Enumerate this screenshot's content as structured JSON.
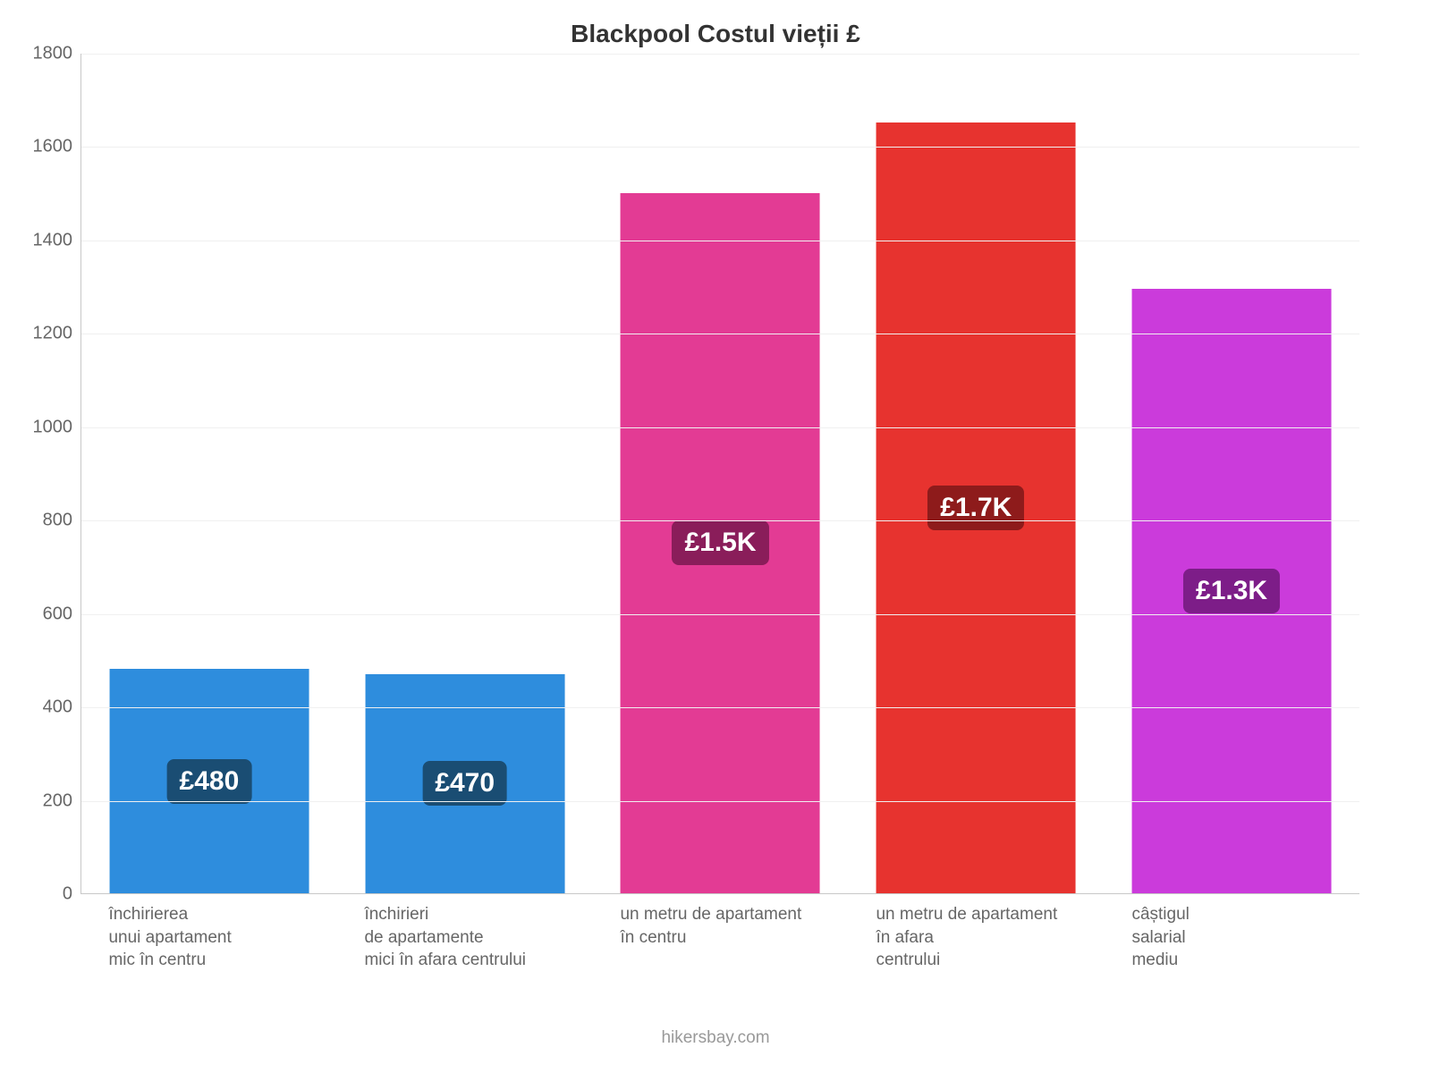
{
  "chart": {
    "type": "bar",
    "title": "Blackpool Costul vieții £",
    "title_fontsize": 28,
    "title_color": "#333333",
    "background_color": "#ffffff",
    "grid_color": "#f0f0f0",
    "axis_color": "#c8c8c8",
    "ylim": [
      0,
      1800
    ],
    "ytick_step": 200,
    "yticks": [
      0,
      200,
      400,
      600,
      800,
      1000,
      1200,
      1400,
      1600,
      1800
    ],
    "tick_fontsize": 20,
    "tick_color": "#666666",
    "bar_width_pct": 78,
    "categories": [
      "închirierea\nunui apartament\nmic în centru",
      "închirieri\nde apartamente\nmici în afara centrului",
      "un metru de apartament\nîn centru",
      "un metru de apartament\nîn afara\ncentrului",
      "câștigul\nsalarial\nmediu"
    ],
    "xlabel_fontsize": 19,
    "xlabel_color": "#666666",
    "values": [
      480,
      470,
      1500,
      1650,
      1295
    ],
    "value_labels": [
      "£480",
      "£470",
      "£1.5K",
      "£1.7K",
      "£1.3K"
    ],
    "bar_colors": [
      "#2e8ddd",
      "#2e8ddd",
      "#e33b94",
      "#e7332f",
      "#cb3bdb"
    ],
    "badge_colors": [
      "#1a4d73",
      "#1a4d73",
      "#8a1d5a",
      "#8e1b1b",
      "#7d1d88"
    ],
    "badge_fontsize": 30,
    "attribution": "hikersbay.com",
    "attribution_color": "#999999",
    "attribution_fontsize": 19
  }
}
